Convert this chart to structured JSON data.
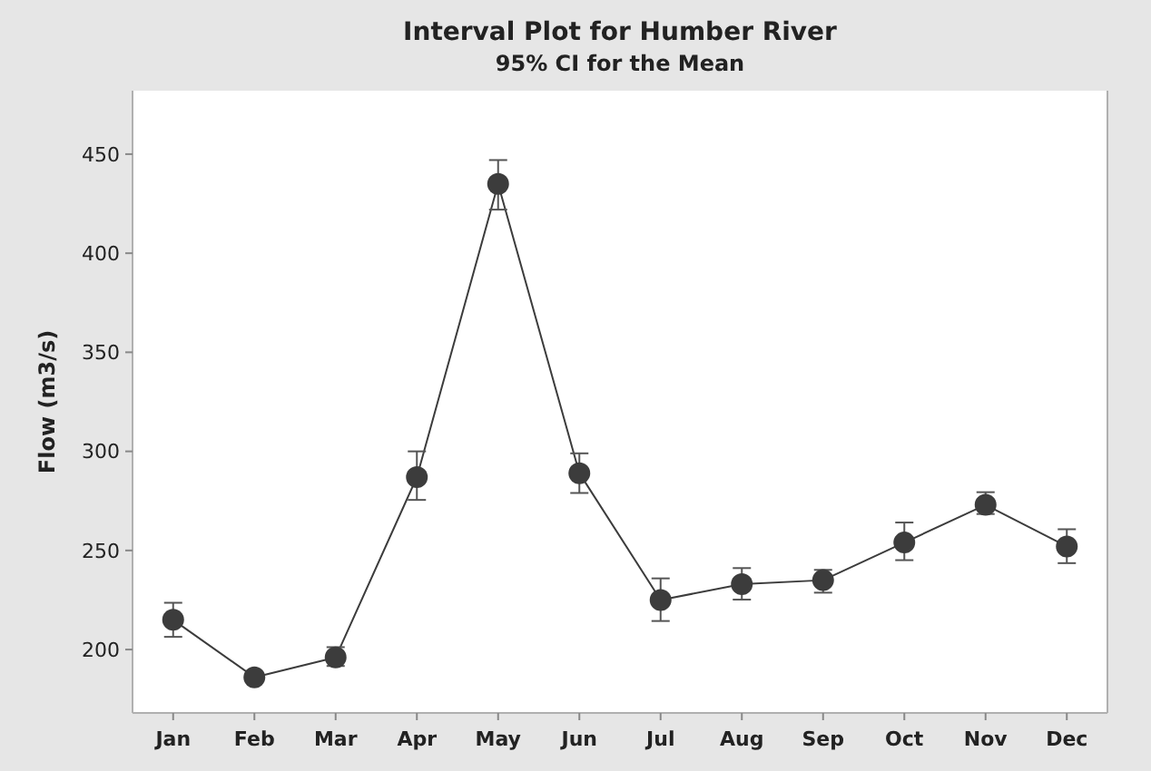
{
  "chart_data": {
    "type": "line",
    "title": "Interval Plot for Humber River",
    "subtitle": "95% CI for the Mean",
    "ylabel": "Flow (m3/s)",
    "categories": [
      "Jan",
      "Feb",
      "Mar",
      "Apr",
      "May",
      "Jun",
      "Jul",
      "Aug",
      "Sep",
      "Oct",
      "Nov",
      "Dec"
    ],
    "series": [
      {
        "color": "#3c3c3c",
        "values": [
          215,
          186,
          196,
          287,
          435,
          289,
          225,
          233,
          235,
          254,
          273,
          252
        ],
        "errors": [
          [
            206.4,
            223.6
          ],
          null,
          [
            191.7,
            201.2
          ],
          [
            275.5,
            300
          ],
          [
            422,
            447
          ],
          [
            279,
            299
          ],
          [
            214.4,
            235.9
          ],
          [
            225.2,
            241.1
          ],
          [
            228.7,
            240.2
          ],
          [
            245.1,
            264.1
          ],
          [
            268.4,
            279.4
          ],
          [
            243.6,
            260.7
          ]
        ]
      }
    ],
    "ylim": [
      168,
      482
    ],
    "yticks": [
      200,
      250,
      300,
      350,
      400,
      450
    ],
    "grid": false,
    "marker": "circle",
    "line_style": "solid"
  }
}
